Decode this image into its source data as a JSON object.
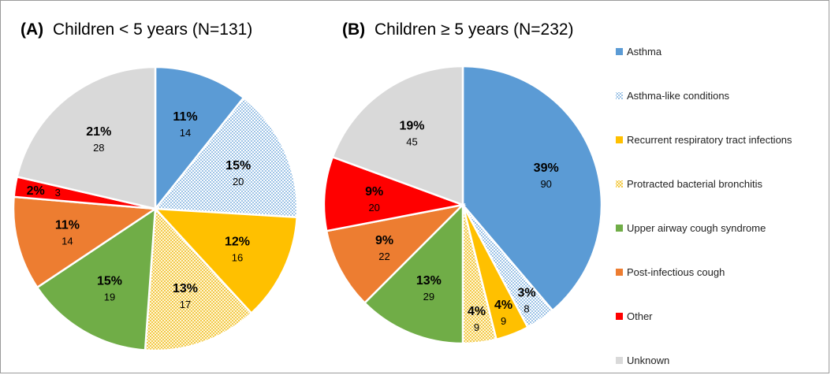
{
  "colors": {
    "asthma": "#5b9bd5",
    "asthma_like": "#bdd7ee",
    "rrti": "#ffc000",
    "pbb": "#ffe699",
    "uacs": "#70ad47",
    "pic": "#ed7d31",
    "other": "#ff0000",
    "unknown": "#d9d9d9"
  },
  "legend": [
    {
      "label": "Asthma",
      "key": "asthma",
      "pattern": "none"
    },
    {
      "label": "Asthma-like conditions",
      "key": "asthma_like",
      "pattern": "dots"
    },
    {
      "label": "Recurrent respiratory tract infections",
      "key": "rrti",
      "pattern": "none"
    },
    {
      "label": "Protracted bacterial bronchitis",
      "key": "pbb",
      "pattern": "check"
    },
    {
      "label": "Upper airway cough syndrome",
      "key": "uacs",
      "pattern": "none"
    },
    {
      "label": "Post-infectious cough",
      "key": "pic",
      "pattern": "none"
    },
    {
      "label": "Other",
      "key": "other",
      "pattern": "none"
    },
    {
      "label": "Unknown",
      "key": "unknown",
      "pattern": "none"
    }
  ],
  "chart_data": [
    {
      "type": "pie",
      "title_label": "(A)",
      "title_text": "Children < 5 years (N=131)",
      "categories": [
        "Asthma",
        "Asthma-like conditions",
        "Recurrent respiratory tract infections",
        "Protracted bacterial bronchitis",
        "Upper airway cough syndrome",
        "Post-infectious cough",
        "Other",
        "Unknown"
      ],
      "values": [
        14,
        20,
        16,
        17,
        19,
        14,
        3,
        28
      ],
      "percent_labels": [
        "11%",
        "15%",
        "12%",
        "13%",
        "15%",
        "11%",
        "2%",
        "21%"
      ],
      "count_labels": [
        "14",
        "20",
        "16",
        "17",
        "19",
        "14",
        "3",
        "28"
      ]
    },
    {
      "type": "pie",
      "title_label": "(B)",
      "title_text": "Children ≥ 5 years (N=232)",
      "categories": [
        "Asthma",
        "Asthma-like conditions",
        "Recurrent respiratory tract infections",
        "Protracted bacterial bronchitis",
        "Upper airway cough syndrome",
        "Post-infectious cough",
        "Other",
        "Unknown"
      ],
      "values": [
        90,
        8,
        9,
        9,
        29,
        22,
        20,
        45
      ],
      "percent_labels": [
        "39%",
        "3%",
        "4%",
        "4%",
        "13%",
        "9%",
        "9%",
        "19%"
      ],
      "count_labels": [
        "90",
        "8",
        "9",
        "9",
        "29",
        "22",
        "20",
        "45"
      ]
    }
  ]
}
